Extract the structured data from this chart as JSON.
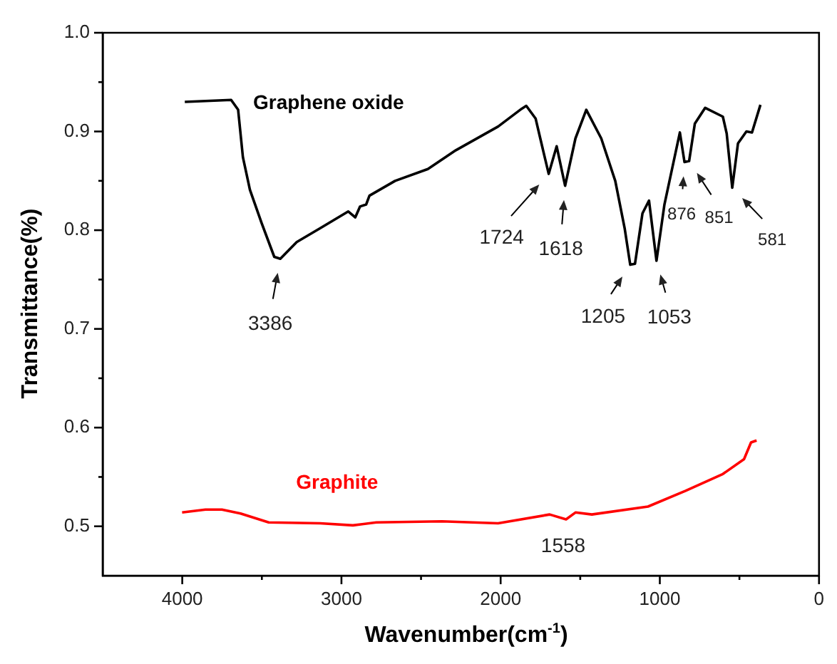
{
  "chart_data": {
    "type": "line",
    "xlabel": "Wavenumber(cm$^{-1}$)",
    "ylabel": "Transmittance(%)",
    "xlim": [
      4500,
      0
    ],
    "ylim": [
      0.45,
      1.0
    ],
    "xticks": [
      {
        "value": 4000,
        "label": "4000"
      },
      {
        "value": 3500,
        "label": null
      },
      {
        "value": 3000,
        "label": "3000"
      },
      {
        "value": 2500,
        "label": null
      },
      {
        "value": 2000,
        "label": "2000"
      },
      {
        "value": 1500,
        "label": null
      },
      {
        "value": 1000,
        "label": "1000"
      },
      {
        "value": 500,
        "label": null
      },
      {
        "value": 0,
        "label": "0"
      }
    ],
    "yticks": [
      {
        "value": 0.5,
        "label": "0.5"
      },
      {
        "value": 0.55,
        "label": null
      },
      {
        "value": 0.6,
        "label": "0.6"
      },
      {
        "value": 0.65,
        "label": null
      },
      {
        "value": 0.7,
        "label": "0.7"
      },
      {
        "value": 0.75,
        "label": null
      },
      {
        "value": 0.8,
        "label": "0.8"
      },
      {
        "value": 0.85,
        "label": null
      },
      {
        "value": 0.9,
        "label": "0.9"
      },
      {
        "value": 0.95,
        "label": null
      },
      {
        "value": 1.0,
        "label": "1.0"
      }
    ],
    "grid": false,
    "legend": false,
    "marker": "none",
    "line_style": "solid",
    "series": [
      {
        "name": "Graphene oxide",
        "color": "#000000",
        "x": [
          3984,
          3693,
          3649,
          3619,
          3575,
          3501,
          3422,
          3384,
          3281,
          3133,
          2957,
          2913,
          2883,
          2845,
          2824,
          2663,
          2457,
          2281,
          2016,
          1868,
          1839,
          1780,
          1751,
          1698,
          1648,
          1595,
          1530,
          1462,
          1368,
          1280,
          1221,
          1186,
          1156,
          1109,
          1068,
          1021,
          971,
          874,
          845,
          816,
          780,
          715,
          604,
          580,
          545,
          509,
          456,
          421,
          368
        ],
        "values": [
          0.93,
          0.932,
          0.922,
          0.874,
          0.841,
          0.807,
          0.773,
          0.771,
          0.788,
          0.802,
          0.819,
          0.813,
          0.824,
          0.826,
          0.835,
          0.85,
          0.862,
          0.881,
          0.905,
          0.923,
          0.926,
          0.913,
          0.893,
          0.857,
          0.885,
          0.845,
          0.893,
          0.922,
          0.893,
          0.85,
          0.802,
          0.765,
          0.766,
          0.817,
          0.83,
          0.769,
          0.826,
          0.899,
          0.869,
          0.87,
          0.908,
          0.924,
          0.915,
          0.898,
          0.843,
          0.888,
          0.9,
          0.899,
          0.927
        ]
      },
      {
        "name": "Graphite",
        "color": "#ff0000",
        "x": [
          4001,
          3854,
          3751,
          3634,
          3457,
          3134,
          2928,
          2781,
          2369,
          2016,
          1692,
          1589,
          1530,
          1427,
          1074,
          838,
          604,
          471,
          427,
          392
        ],
        "values": [
          0.514,
          0.517,
          0.517,
          0.513,
          0.504,
          0.503,
          0.501,
          0.504,
          0.505,
          0.503,
          0.512,
          0.507,
          0.514,
          0.512,
          0.52,
          0.536,
          0.553,
          0.568,
          0.585,
          0.587
        ]
      }
    ],
    "annotations": [
      {
        "text": "3386",
        "x": 3384,
        "y": 0.771
      },
      {
        "text": "1724",
        "x": 1698,
        "y": 0.857
      },
      {
        "text": "1618",
        "x": 1595,
        "y": 0.845
      },
      {
        "text": "1205",
        "x": 1186,
        "y": 0.765
      },
      {
        "text": "1053",
        "x": 1021,
        "y": 0.769
      },
      {
        "text": "876",
        "x": 845,
        "y": 0.869
      },
      {
        "text": "851",
        "x": 816,
        "y": 0.87
      },
      {
        "text": "581",
        "x": 545,
        "y": 0.843
      },
      {
        "text": "1558",
        "x": 1589,
        "y": 0.507
      }
    ]
  }
}
